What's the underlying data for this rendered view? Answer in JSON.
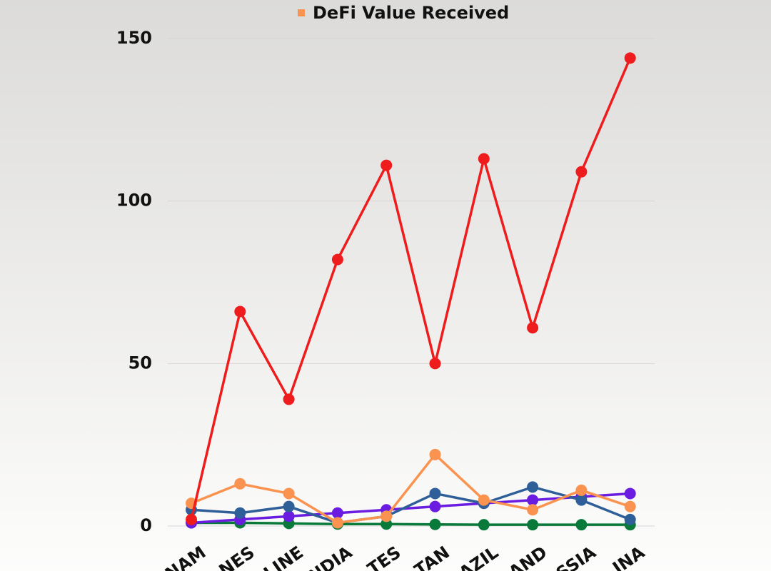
{
  "chart_data": {
    "type": "line",
    "categories": [
      "NAM",
      "NES",
      "LINE",
      "NDIA",
      "TES",
      "TAN",
      "AZIL",
      "AND",
      "SSIA",
      "INA"
    ],
    "series": [
      {
        "color": "#ee1c1c",
        "values": [
          2,
          66,
          39,
          82,
          111,
          50,
          113,
          61,
          109,
          144
        ]
      },
      {
        "name": "DeFi Value Received",
        "color": "#fb9350",
        "values": [
          7,
          13,
          10,
          1,
          3,
          22,
          8,
          5,
          11,
          6
        ]
      },
      {
        "color": "#2f5f98",
        "values": [
          5,
          4,
          6,
          1,
          3,
          10,
          7,
          12,
          8,
          2
        ]
      },
      {
        "color": "#6a1de0",
        "values": [
          1,
          2,
          3,
          4,
          5,
          6,
          7,
          8,
          9,
          10
        ]
      },
      {
        "color": "#0a7a3a",
        "values": [
          1,
          1,
          0.8,
          0.6,
          0.6,
          0.5,
          0.4,
          0.4,
          0.4,
          0.4
        ]
      }
    ],
    "ylim": [
      0,
      150
    ],
    "yticks": [
      0,
      50,
      100,
      150
    ],
    "grid": true
  }
}
